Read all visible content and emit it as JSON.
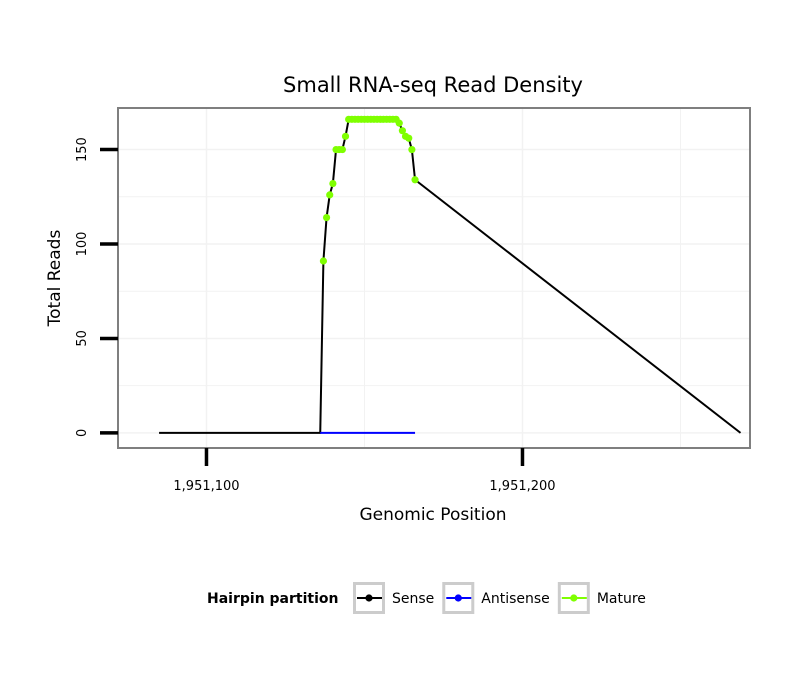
{
  "chart_data": {
    "type": "line",
    "title": "Small RNA-seq Read Density",
    "xlabel": "Genomic Position",
    "ylabel": "Total Reads",
    "xlim": [
      1951072,
      1951272
    ],
    "ylim": [
      -8,
      172
    ],
    "x_ticks": [
      {
        "value": 1951100,
        "label": "1,951,100"
      },
      {
        "value": 1951200,
        "label": "1,951,200"
      }
    ],
    "y_ticks": [
      {
        "value": 0,
        "label": "0"
      },
      {
        "value": 50,
        "label": "50"
      },
      {
        "value": 100,
        "label": "100"
      },
      {
        "value": 150,
        "label": "150"
      }
    ],
    "legend": {
      "title": "Hairpin partition",
      "position": "bottom",
      "entries": [
        {
          "name": "Sense",
          "color": "#000000"
        },
        {
          "name": "Antisense",
          "color": "#0000ff"
        },
        {
          "name": "Mature",
          "color": "#7fff00"
        }
      ]
    },
    "series": [
      {
        "name": "Sense",
        "color": "#000000",
        "x": [
          1951085,
          1951136,
          1951137,
          1951138,
          1951139,
          1951140,
          1951141,
          1951142,
          1951143,
          1951144,
          1951145,
          1951146,
          1951147,
          1951148,
          1951149,
          1951150,
          1951151,
          1951152,
          1951153,
          1951154,
          1951155,
          1951156,
          1951157,
          1951158,
          1951159,
          1951160,
          1951161,
          1951162,
          1951163,
          1951164,
          1951165,
          1951166,
          1951269
        ],
        "values": [
          0,
          0,
          91,
          114,
          126,
          132,
          150,
          150,
          150,
          157,
          166,
          166,
          166,
          166,
          166,
          166,
          166,
          166,
          166,
          166,
          166,
          166,
          166,
          166,
          166,
          166,
          164,
          160,
          157,
          156,
          150,
          134,
          0
        ]
      },
      {
        "name": "Antisense",
        "color": "#0000ff",
        "x": [
          1951136,
          1951166
        ],
        "values": [
          0,
          0
        ]
      },
      {
        "name": "Mature",
        "color": "#7fff00",
        "x": [
          1951137,
          1951138,
          1951139,
          1951140,
          1951141,
          1951142,
          1951143,
          1951144,
          1951145,
          1951146,
          1951147,
          1951148,
          1951149,
          1951150,
          1951151,
          1951152,
          1951153,
          1951154,
          1951155,
          1951156,
          1951157,
          1951158,
          1951159,
          1951160,
          1951161,
          1951162,
          1951163,
          1951164,
          1951165,
          1951166
        ],
        "values": [
          91,
          114,
          126,
          132,
          150,
          150,
          150,
          157,
          166,
          166,
          166,
          166,
          166,
          166,
          166,
          166,
          166,
          166,
          166,
          166,
          166,
          166,
          166,
          166,
          164,
          160,
          157,
          156,
          150,
          134
        ]
      }
    ]
  }
}
